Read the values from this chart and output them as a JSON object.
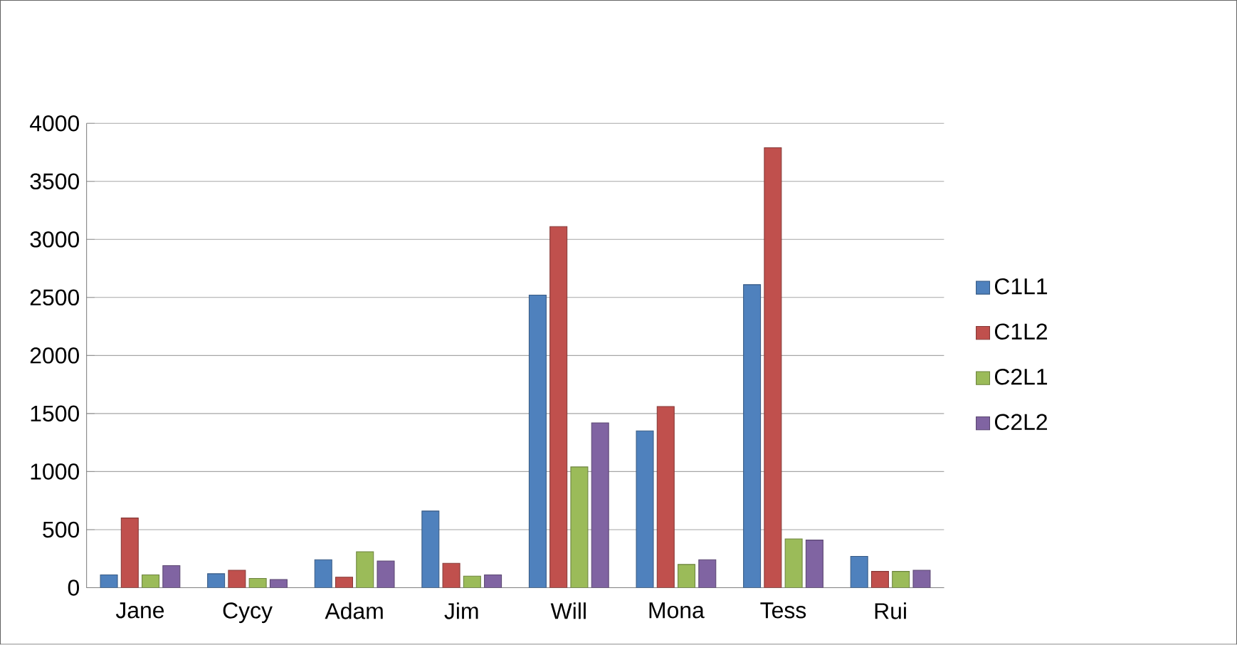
{
  "chart_data": {
    "type": "bar",
    "categories": [
      "Jane",
      "Cycy",
      "Adam",
      "Jim",
      "Will",
      "Mona",
      "Tess",
      "Rui"
    ],
    "series": [
      {
        "name": "C1L1",
        "color": "#4f81bd",
        "values": [
          110,
          120,
          240,
          660,
          2520,
          1350,
          2610,
          270
        ]
      },
      {
        "name": "C1L2",
        "color": "#c0504d",
        "values": [
          600,
          150,
          90,
          210,
          3110,
          1560,
          3790,
          140
        ]
      },
      {
        "name": "C2L1",
        "color": "#9bbb59",
        "values": [
          110,
          80,
          310,
          100,
          1040,
          200,
          420,
          140
        ]
      },
      {
        "name": "C2L2",
        "color": "#8064a2",
        "values": [
          190,
          70,
          230,
          110,
          1420,
          240,
          410,
          150
        ]
      }
    ],
    "ylim": [
      0,
      4000
    ],
    "yticks": [
      0,
      500,
      1000,
      1500,
      2000,
      2500,
      3000,
      3500,
      4000
    ],
    "grid": "y",
    "legend": "right"
  }
}
